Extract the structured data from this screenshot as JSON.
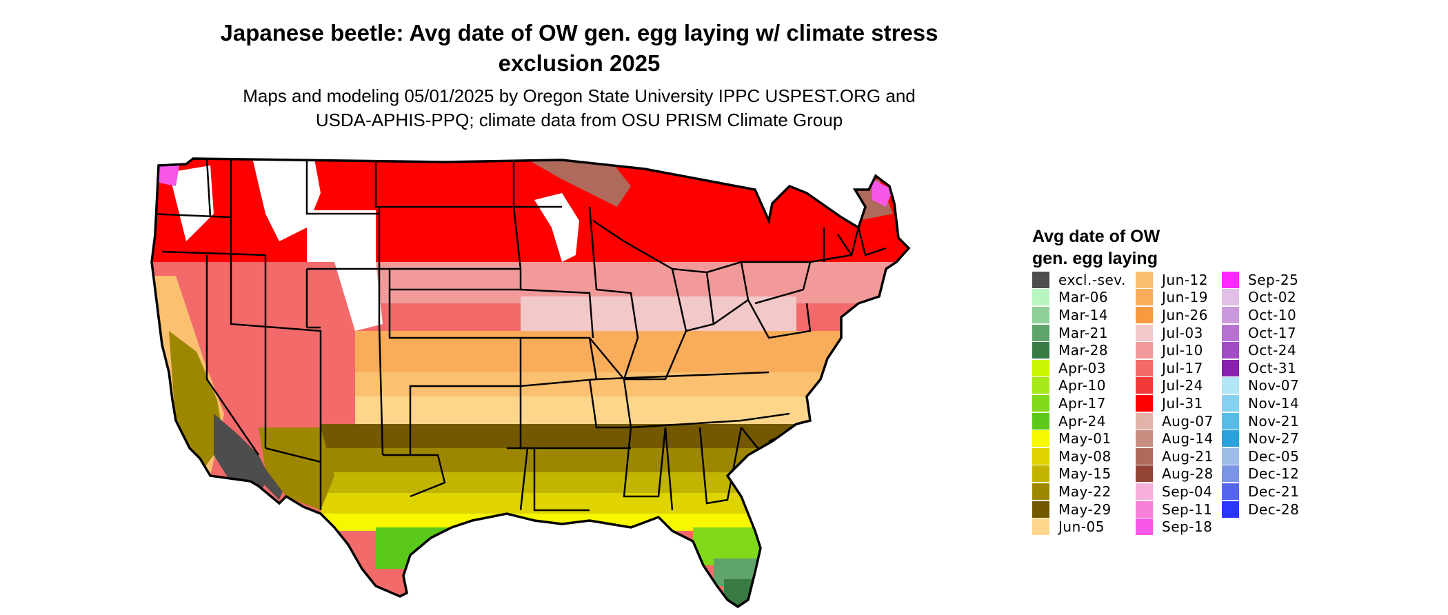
{
  "title_line1": "Japanese beetle: Avg date of OW gen. egg laying w/ climate stress",
  "title_line2": "exclusion 2025",
  "subtitle_line1": "Maps and modeling 05/01/2025 by Oregon State University IPPC USPEST.ORG and",
  "subtitle_line2": "USDA-APHIS-PPQ; climate data from OSU PRISM Climate Group",
  "legend": {
    "title_line1": "Avg date of OW",
    "title_line2": "gen. egg laying",
    "columns": [
      [
        {
          "label": "excl.-sev.",
          "color": "#4d4d4d"
        },
        {
          "label": "Mar-06",
          "color": "#b8f5c0"
        },
        {
          "label": "Mar-14",
          "color": "#8fcf98"
        },
        {
          "label": "Mar-21",
          "color": "#5fa46b"
        },
        {
          "label": "Mar-28",
          "color": "#3a7a45"
        },
        {
          "label": "Apr-03",
          "color": "#c8f500"
        },
        {
          "label": "Apr-10",
          "color": "#a6e81a"
        },
        {
          "label": "Apr-17",
          "color": "#80d91a"
        },
        {
          "label": "Apr-24",
          "color": "#5bc91a"
        },
        {
          "label": "May-01",
          "color": "#f7f700"
        },
        {
          "label": "May-08",
          "color": "#dfd400"
        },
        {
          "label": "May-15",
          "color": "#c2b400"
        },
        {
          "label": "May-22",
          "color": "#9e8700"
        },
        {
          "label": "May-29",
          "color": "#735800"
        },
        {
          "label": "Jun-05",
          "color": "#fdd68c"
        }
      ],
      [
        {
          "label": "Jun-12",
          "color": "#fbc070"
        },
        {
          "label": "Jun-19",
          "color": "#f9ad5b"
        },
        {
          "label": "Jun-26",
          "color": "#f79a40"
        },
        {
          "label": "Jul-03",
          "color": "#f2c8c8"
        },
        {
          "label": "Jul-10",
          "color": "#f29a9a"
        },
        {
          "label": "Jul-17",
          "color": "#f26a6a"
        },
        {
          "label": "Jul-24",
          "color": "#f23a3a"
        },
        {
          "label": "Jul-31",
          "color": "#ff0000"
        },
        {
          "label": "Aug-07",
          "color": "#e2b3a8"
        },
        {
          "label": "Aug-14",
          "color": "#c98e82"
        },
        {
          "label": "Aug-21",
          "color": "#ae6a5b"
        },
        {
          "label": "Aug-28",
          "color": "#934535"
        },
        {
          "label": "Sep-04",
          "color": "#f7b0dc"
        },
        {
          "label": "Sep-11",
          "color": "#f780d8"
        },
        {
          "label": "Sep-18",
          "color": "#f757e6"
        }
      ],
      [
        {
          "label": "Sep-25",
          "color": "#ff28ff"
        },
        {
          "label": "Oct-02",
          "color": "#e2bfe6"
        },
        {
          "label": "Oct-10",
          "color": "#cc99dd"
        },
        {
          "label": "Oct-17",
          "color": "#b672d1"
        },
        {
          "label": "Oct-24",
          "color": "#a04cc4"
        },
        {
          "label": "Oct-31",
          "color": "#8a20b0"
        },
        {
          "label": "Nov-07",
          "color": "#b0e6f5"
        },
        {
          "label": "Nov-14",
          "color": "#86d1ef"
        },
        {
          "label": "Nov-21",
          "color": "#57bce6"
        },
        {
          "label": "Nov-27",
          "color": "#2aa2dc"
        },
        {
          "label": "Dec-05",
          "color": "#9dbde6"
        },
        {
          "label": "Dec-12",
          "color": "#7a95e6"
        },
        {
          "label": "Dec-21",
          "color": "#5566ee"
        },
        {
          "label": "Dec-28",
          "color": "#2a35ff"
        }
      ]
    ]
  }
}
